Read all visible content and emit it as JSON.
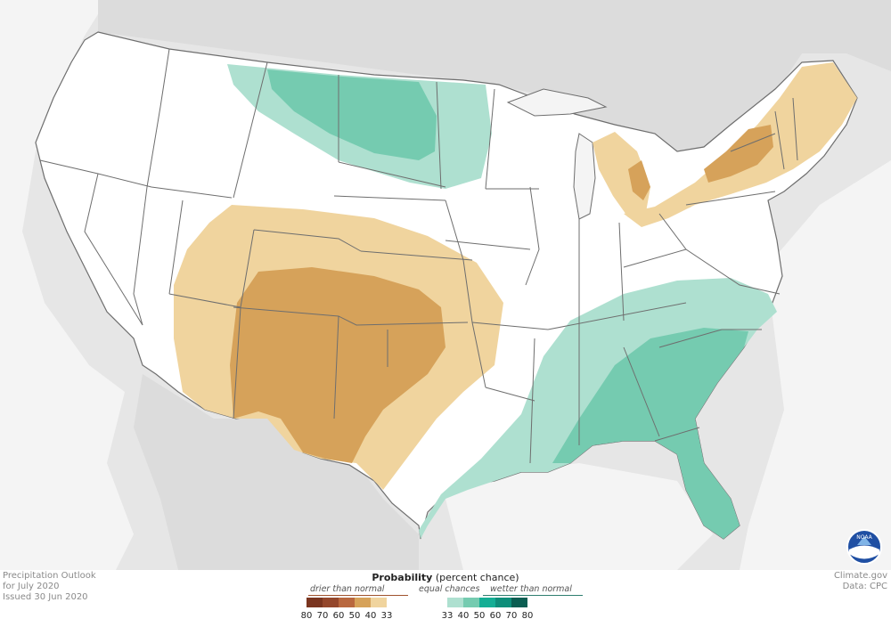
{
  "map": {
    "title": "Precipitation Outlook",
    "period": "for July 2020",
    "issued": "Issued 30 Jun 2020",
    "background_color": "#e6e6e6",
    "ocean_color": "#f4f4f4",
    "land_color": "#ffffff",
    "state_border_color": "#6e6e6e"
  },
  "legend": {
    "title_bold": "Probability",
    "title_rest": " (percent chance)",
    "drier_label": "drier than normal",
    "equal_label": "equal chances",
    "wetter_label": "wetter than normal",
    "dry_colors": [
      "#7a3520",
      "#94472c",
      "#b9683f",
      "#d6a25a",
      "#f0d49e"
    ],
    "equal_color": "#ffffff",
    "wet_colors": [
      "#aee0d0",
      "#75cbb0",
      "#15ae95",
      "#0e8e7a",
      "#0b5e52"
    ],
    "ticks": [
      "80",
      "70",
      "60",
      "50",
      "40",
      "33",
      "33",
      "40",
      "50",
      "60",
      "70",
      "80"
    ]
  },
  "credits": {
    "source": "Climate.gov",
    "data": "Data: CPC"
  },
  "logo": {
    "icon": "noaa-logo-icon",
    "text": "NOAA"
  }
}
